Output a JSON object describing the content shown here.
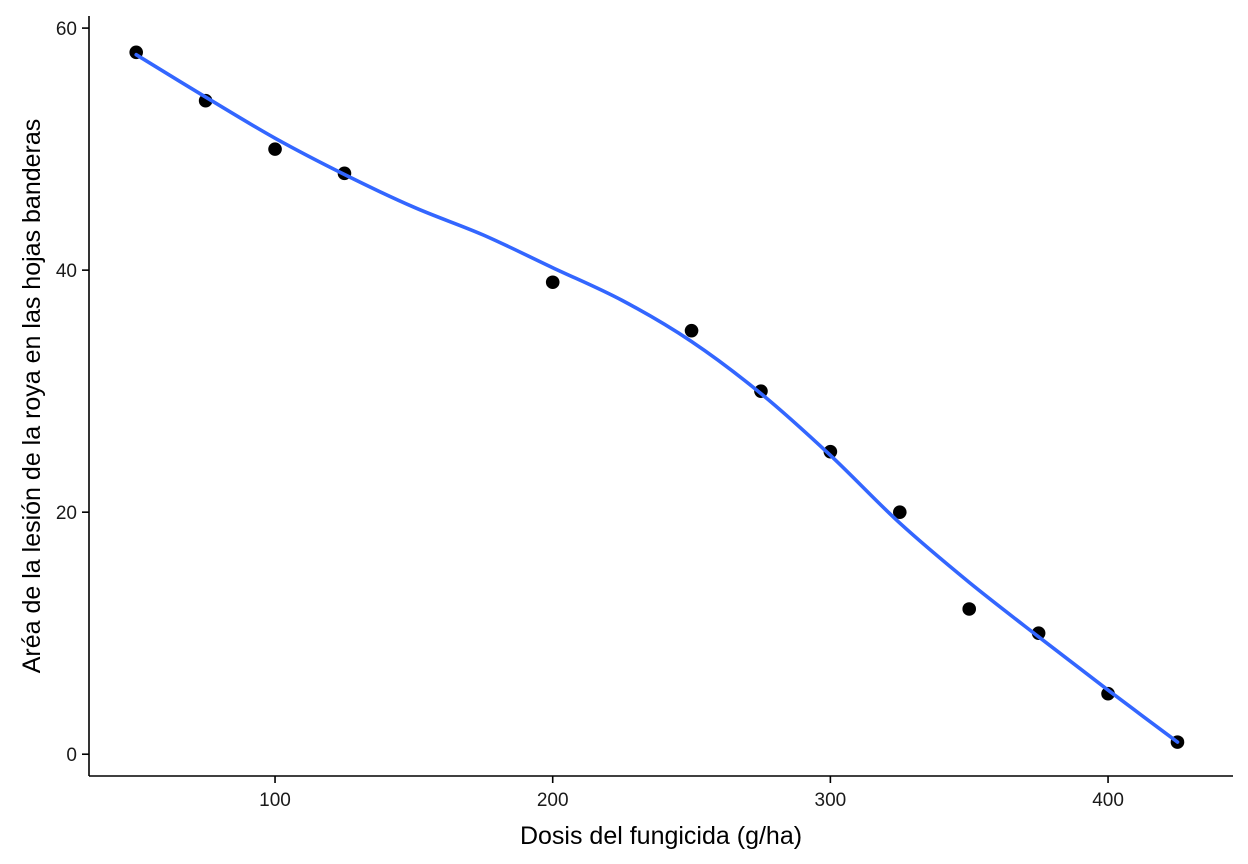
{
  "chart_data": {
    "type": "scatter",
    "title": "",
    "xlabel": "Dosis del fungicida (g/ha)",
    "ylabel": "Aréa de la lesión de la roya en las hojas banderas",
    "xlim": [
      33,
      445
    ],
    "ylim": [
      -1.8,
      61
    ],
    "x_ticks": [
      100,
      200,
      300,
      400
    ],
    "y_ticks": [
      0,
      20,
      40,
      60
    ],
    "grid": false,
    "legend": "none",
    "series": [
      {
        "kind": "points",
        "x": [
          50,
          75,
          100,
          125,
          200,
          250,
          275,
          300,
          325,
          350,
          375,
          400,
          425
        ],
        "y": [
          58,
          54,
          50,
          48,
          39,
          35,
          30,
          25,
          20,
          12,
          10,
          5,
          1
        ]
      },
      {
        "kind": "smooth-line",
        "x": [
          50,
          75,
          100,
          125,
          150,
          175,
          200,
          225,
          250,
          275,
          300,
          325,
          350,
          375,
          400,
          425
        ],
        "y": [
          57.8,
          54.3,
          50.9,
          47.9,
          45.2,
          42.9,
          40.2,
          37.5,
          34.1,
          29.8,
          24.7,
          19.1,
          14.2,
          9.7,
          5.3,
          1.0
        ]
      }
    ],
    "colors": {
      "points": "#000000",
      "smooth_line": "#3366FF"
    }
  }
}
